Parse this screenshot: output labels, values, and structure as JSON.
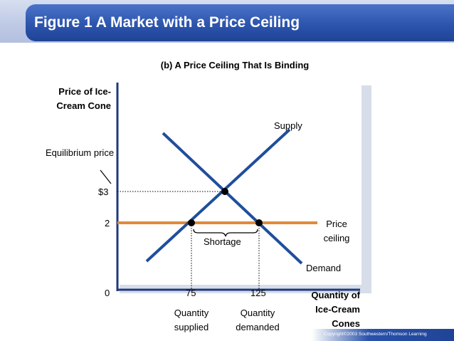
{
  "header": {
    "title": "Figure 1 A Market with a Price Ceiling"
  },
  "figure": {
    "subtitle": "(b) A Price Ceiling That Is Binding",
    "y_axis_label": "Price of Ice-Cream Cone",
    "x_axis_label": "Quantity of Ice-Cream Cones",
    "equilibrium_label": "Equilibrium price",
    "y_ticks": {
      "p3": "$3",
      "p2": "2",
      "zero": "0"
    },
    "x_ticks": {
      "q75": "75",
      "q125": "125"
    },
    "curves": {
      "supply": "Supply",
      "demand": "Demand",
      "ceiling": "Price ceiling"
    },
    "annotations": {
      "shortage": "Shortage",
      "quantity_supplied": "Quantity supplied",
      "quantity_demanded": "Quantity demanded"
    },
    "colors": {
      "curve": "#1f4e9c",
      "ceiling": "#e08a3c",
      "axis": "#1f3a7a",
      "title_bg": "#2d55ad",
      "plot_shadow": "#d7dde9"
    }
  },
  "footer": {
    "copyright": "Copyright©2003  Southwestern/Thomson Learning"
  }
}
